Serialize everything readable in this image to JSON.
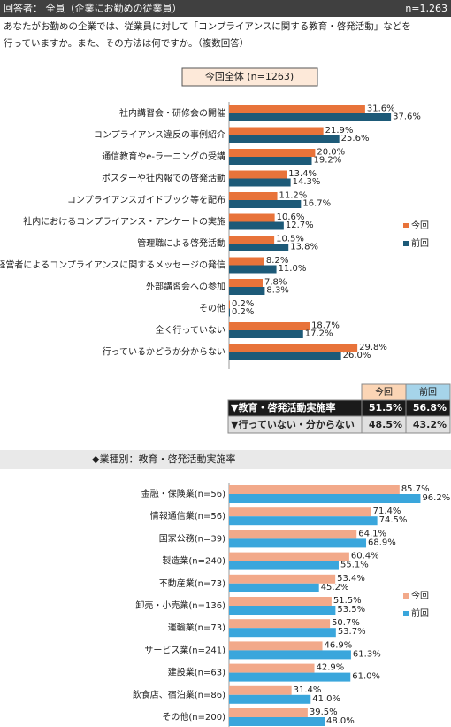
{
  "header": {
    "respondent": "回答者： 全員（企業にお勤めの従業員）",
    "n": "n=1,263"
  },
  "question": [
    "あなたがお勤めの企業では、従業員に対して「コンプライアンスに関する教育・啓発活動」などを",
    "行っていますか。また、その方法は何ですか。（複数回答）"
  ],
  "chart_data": [
    {
      "type": "bar",
      "orientation": "horizontal",
      "title": "今回全体 (n=1263)",
      "categories": [
        "社内講習会・研修会の開催",
        "コンプライアンス違反の事例紹介",
        "通信教育やe-ラーニングの受講",
        "ポスターや社内報での啓発活動",
        "コンプライアンスガイドブック等を配布",
        "社内におけるコンプライアンス・アンケートの実施",
        "管理職による啓発活動",
        "経営者によるコンプライアンスに関するメッセージの発信",
        "外部講習会への参加",
        "その他",
        "全く行っていない",
        "行っているかどうか分からない"
      ],
      "series": [
        {
          "name": "今回",
          "color": "#e8733a",
          "values": [
            31.6,
            21.9,
            20.0,
            13.4,
            11.2,
            10.6,
            10.5,
            8.2,
            7.8,
            0.2,
            18.7,
            29.8
          ],
          "value_labels": [
            "31.6%",
            "21.9%",
            "20.0%",
            "13.4%",
            "11.2%",
            "10.6%",
            "10.5%",
            "8.2%",
            "7.8%",
            "0.2%",
            "18.7%",
            "29.8%"
          ]
        },
        {
          "name": "前回",
          "color": "#1d5a78",
          "values": [
            37.6,
            25.6,
            19.2,
            14.3,
            16.7,
            12.7,
            13.8,
            11.0,
            8.3,
            0.2,
            17.2,
            26.0
          ],
          "value_labels": [
            "37.6%",
            "25.6%",
            "19.2%",
            "14.3%",
            "16.7%",
            "12.7%",
            "13.8%",
            "11.0%",
            "8.3%",
            "0.2%",
            "17.2%",
            "26.0%"
          ]
        }
      ]
    },
    {
      "type": "bar",
      "orientation": "horizontal",
      "title": "◆業種別：教育・啓発活動実施率",
      "categories": [
        "金融・保険業(n=56)",
        "情報通信業(n=56)",
        "国家公務(n=39)",
        "製造業(n=240)",
        "不動産業(n=73)",
        "卸売・小売業(n=136)",
        "運輸業(n=73)",
        "サービス業(n=241)",
        "建設業(n=63)",
        "飲食店、宿泊業(n=86)",
        "その他(n=200)"
      ],
      "series": [
        {
          "name": "今回",
          "color": "#f2a98a",
          "values": [
            85.7,
            71.4,
            64.1,
            60.4,
            53.4,
            51.5,
            50.7,
            46.9,
            42.9,
            31.4,
            39.5
          ],
          "value_labels": [
            "85.7%",
            "71.4%",
            "64.1%",
            "60.4%",
            "53.4%",
            "51.5%",
            "50.7%",
            "46.9%",
            "42.9%",
            "31.4%",
            "39.5%"
          ]
        },
        {
          "name": "前回",
          "color": "#3aa6dc",
          "values": [
            96.2,
            74.5,
            68.9,
            55.1,
            45.2,
            53.5,
            53.7,
            61.3,
            61.0,
            41.0,
            48.0
          ],
          "value_labels": [
            "96.2%",
            "74.5%",
            "68.9%",
            "55.1%",
            "45.2%",
            "53.5%",
            "53.7%",
            "61.3%",
            "61.0%",
            "41.0%",
            "48.0%"
          ]
        }
      ]
    }
  ],
  "table": {
    "columns": [
      "今回",
      "前回"
    ],
    "rows": [
      [
        "▼教育・啓発活動実施率",
        "51.5%",
        "56.8%"
      ],
      [
        "▼行っていない・分からない",
        "48.5%",
        "43.2%"
      ]
    ]
  }
}
